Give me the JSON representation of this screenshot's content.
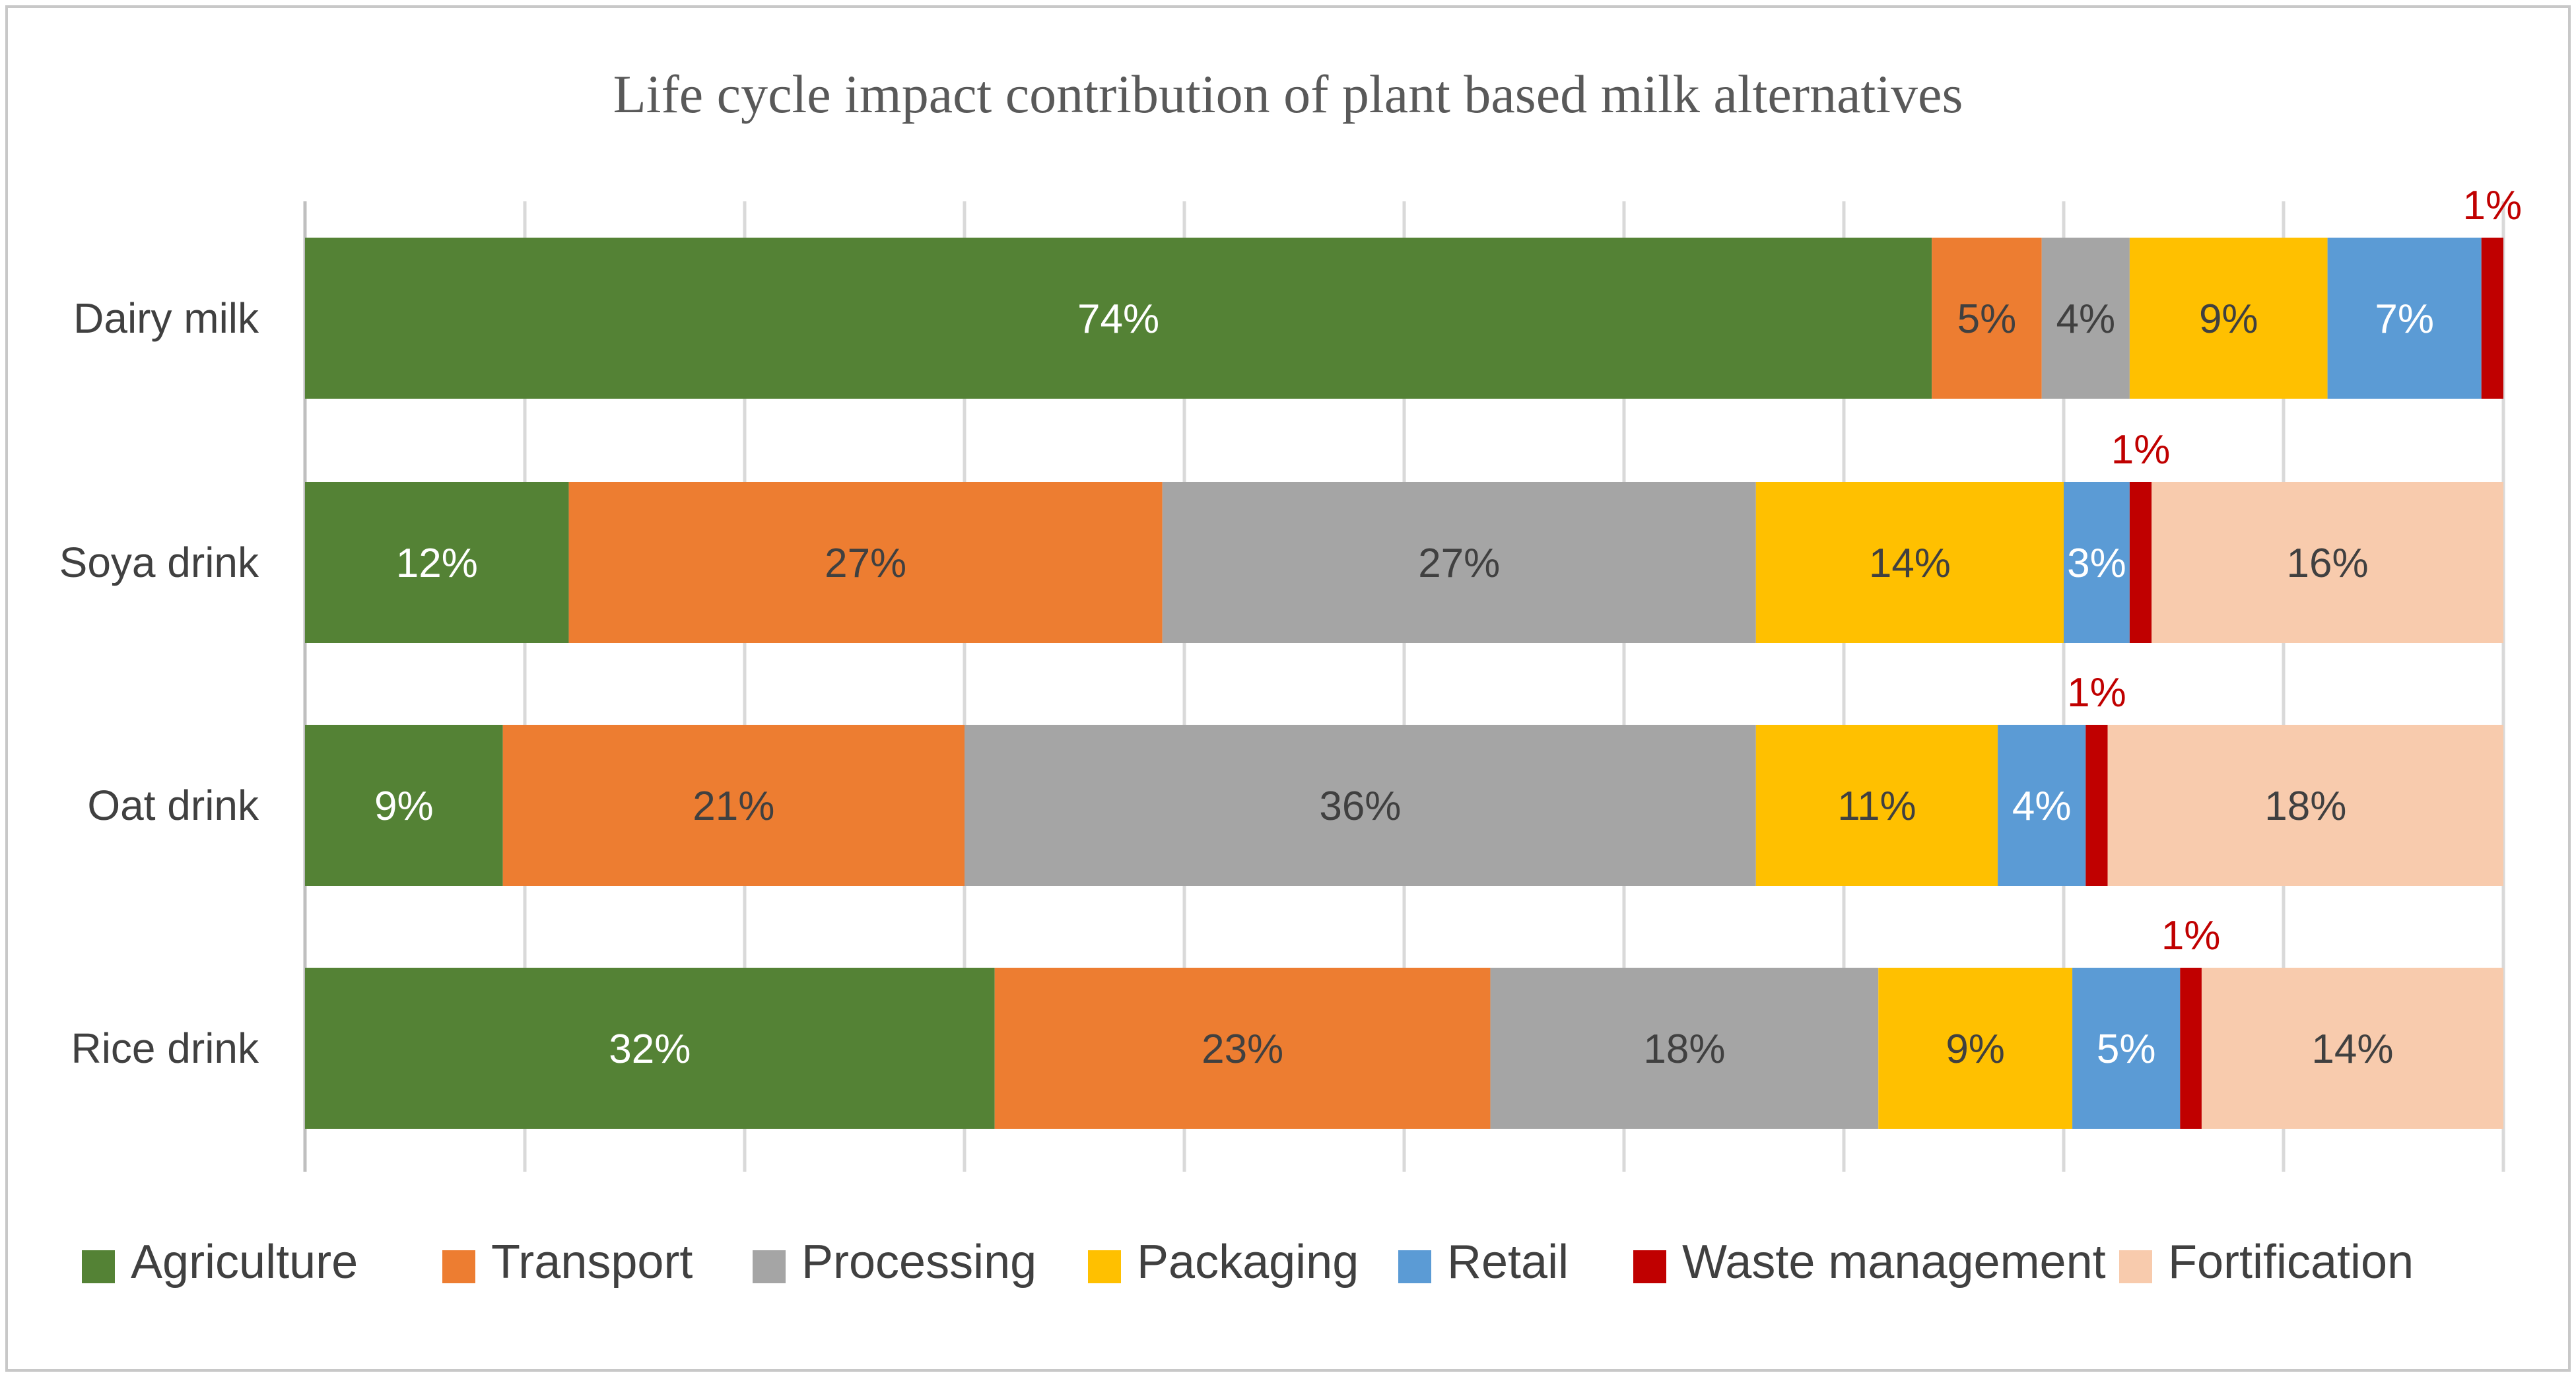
{
  "chart_data": {
    "type": "bar",
    "orientation": "horizontal",
    "stacked": true,
    "percent_stacked": true,
    "title": "Life cycle impact contribution of plant based milk alternatives",
    "xlabel": "",
    "ylabel": "",
    "xlim": [
      0,
      100
    ],
    "grid": true,
    "legend_position": "bottom",
    "categories": [
      "Dairy milk",
      "Soya drink",
      "Oat drink",
      "Rice drink"
    ],
    "series": [
      {
        "name": "Agriculture",
        "color": "#548235",
        "text_color": "#ffffff",
        "values": [
          74,
          12,
          9,
          32
        ],
        "labels": [
          "74%",
          "12%",
          "9%",
          "32%"
        ]
      },
      {
        "name": "Transport",
        "color": "#ed7d31",
        "text_color": "#404040",
        "values": [
          5,
          27,
          21,
          23
        ],
        "labels": [
          "5%",
          "27%",
          "21%",
          "23%"
        ]
      },
      {
        "name": "Processing",
        "color": "#a5a5a5",
        "text_color": "#404040",
        "values": [
          4,
          27,
          36,
          18
        ],
        "labels": [
          "4%",
          "27%",
          "36%",
          "18%"
        ]
      },
      {
        "name": "Packaging",
        "color": "#ffc000",
        "text_color": "#404040",
        "values": [
          9,
          14,
          11,
          9
        ],
        "labels": [
          "9%",
          "14%",
          "11%",
          "9%"
        ]
      },
      {
        "name": "Retail",
        "color": "#5b9bd5",
        "text_color": "#ffffff",
        "values": [
          7,
          3,
          4,
          5
        ],
        "labels": [
          "7%",
          "3%",
          "4%",
          "5%"
        ]
      },
      {
        "name": "Waste management",
        "color": "#c00000",
        "text_color": "#c00000",
        "values": [
          1,
          1,
          1,
          1
        ],
        "labels": [
          "1%",
          "1%",
          "1%",
          "1%"
        ]
      },
      {
        "name": "Fortification",
        "color": "#f8cbad",
        "text_color": "#404040",
        "values": [
          0,
          16,
          18,
          14
        ],
        "labels": [
          "",
          "16%",
          "18%",
          "14%"
        ]
      }
    ]
  }
}
